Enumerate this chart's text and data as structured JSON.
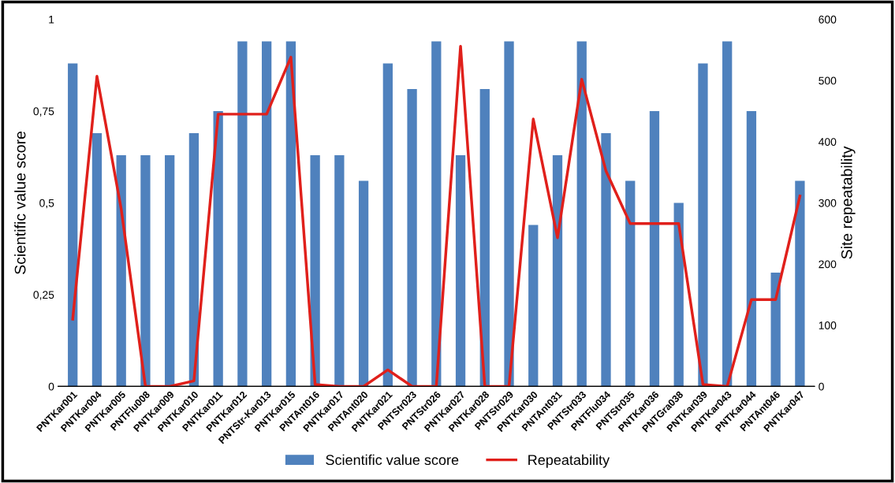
{
  "chart_data": {
    "type": "bar",
    "ylabel": "Scientific value score",
    "y2label": "Site repeatability",
    "categories": [
      "PNTKar001",
      "PNTKar004",
      "PNTKar005",
      "PNTFlu008",
      "PNTKar009",
      "PNTKar010",
      "PNTKar011",
      "PNTKar012",
      "PNTStr-Kar013",
      "PNTKar015",
      "PNTAnt016",
      "PNTKar017",
      "PNTAnt020",
      "PNTKar021",
      "PNTStr023",
      "PNTStr026",
      "PNTKar027",
      "PNTKar028",
      "PNTStr029",
      "PNTKar030",
      "PNTAnt031",
      "PNTStr033",
      "PNTFlu034",
      "PNTStr035",
      "PNTKar036",
      "PNTGra038",
      "PNTKar039",
      "PNTKar043",
      "PNTKar044",
      "PNTAnt046",
      "PNTKar047"
    ],
    "series": [
      {
        "name": "Scientific value score",
        "color": "#4f81bd",
        "values": [
          0.88,
          0.69,
          0.63,
          0.63,
          0.63,
          0.69,
          0.75,
          0.94,
          0.94,
          0.94,
          0.63,
          0.63,
          0.56,
          0.88,
          0.81,
          0.94,
          0.63,
          0.81,
          0.94,
          0.44,
          0.63,
          0.94,
          0.69,
          0.56,
          0.75,
          0.5,
          0.88,
          0.94,
          0.75,
          0.31,
          0.56
        ]
      },
      {
        "name": "Repeatability",
        "type": "line",
        "axis": "y2",
        "color": "#e0201b",
        "values": [
          110,
          507,
          290,
          0,
          0,
          9,
          445,
          445,
          445,
          538,
          3,
          0,
          0,
          27,
          0,
          0,
          556,
          0,
          0,
          437,
          243,
          502,
          352,
          266,
          266,
          266,
          3,
          0,
          142,
          142,
          311
        ]
      }
    ],
    "ylim": [
      0,
      1
    ],
    "yticks": [
      0,
      {
        "value": 0.25,
        "label": "0,25"
      },
      {
        "value": 0.5,
        "label": "0,5"
      },
      {
        "value": 0.75,
        "label": "0,75"
      },
      1
    ],
    "y2lim": [
      0,
      600
    ],
    "y2ticks": [
      0,
      100,
      200,
      300,
      400,
      500,
      600
    ],
    "legend": "bottom",
    "grid": false
  }
}
